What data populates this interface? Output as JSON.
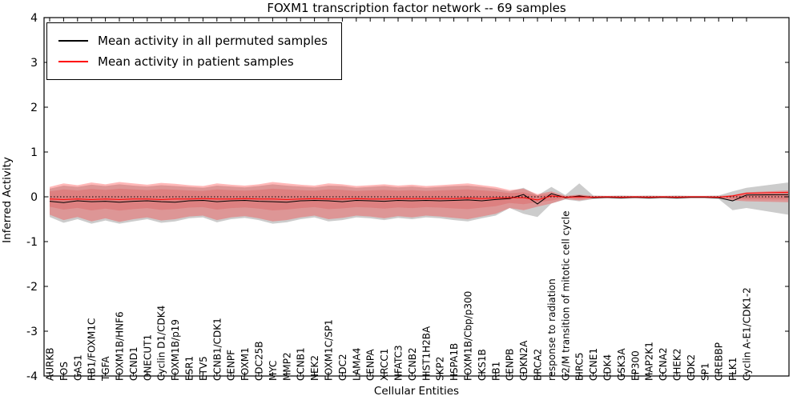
{
  "chart_data": {
    "type": "line",
    "title": "FOXM1 transcription factor network -- 69 samples",
    "xlabel": "Cellular Entities",
    "ylabel": "Inferred Activity",
    "ylim": [
      -4,
      4
    ],
    "yticks": [
      -4,
      -3,
      -2,
      -1,
      0,
      1,
      2,
      3,
      4
    ],
    "grid": false,
    "legend_position": "upper left",
    "zero_reference_line": "black dotted line at y=0",
    "categories": [
      "AURKB",
      "FOS",
      "GAS1",
      "RB1/FOXM1C",
      "TGFA",
      "FOXM1B/HNF6",
      "CCND1",
      "ONECUT1",
      "Cyclin D1/CDK4",
      "FOXM1B/p19",
      "ESR1",
      "ETV5",
      "CCNB1/CDK1",
      "CENPF",
      "FOXM1",
      "CDC25B",
      "MYC",
      "MMP2",
      "CCNB1",
      "NEK2",
      "FOXM1C/SP1",
      "CDC2",
      "LAMA4",
      "CENPA",
      "XRCC1",
      "NFATC3",
      "CCNB2",
      "HIST1H2BA",
      "SKP2",
      "HSPA1B",
      "FOXM1B/Cbp/p300",
      "CKS1B",
      "RB1",
      "CENPB",
      "CDKN2A",
      "BRCA2",
      "response to radiation",
      "G2/M transition of mitotic cell cycle",
      "BIRC5",
      "CCNE1",
      "CDK4",
      "GSK3A",
      "EP300",
      "MAP2K1",
      "CCNA2",
      "CHEK2",
      "CDK2",
      "SP1",
      "CREBBP",
      "PLK1",
      "Cyclin A-E1/CDK1-2"
    ],
    "series": [
      {
        "name": "Mean activity in all permuted samples",
        "color": "#000000",
        "band_color": "rgba(110,110,110,0.35)",
        "values": [
          -0.1,
          -0.13,
          -0.09,
          -0.11,
          -0.1,
          -0.12,
          -0.1,
          -0.09,
          -0.11,
          -0.12,
          -0.09,
          -0.08,
          -0.11,
          -0.09,
          -0.08,
          -0.1,
          -0.11,
          -0.12,
          -0.09,
          -0.08,
          -0.09,
          -0.11,
          -0.08,
          -0.09,
          -0.1,
          -0.08,
          -0.09,
          -0.08,
          -0.09,
          -0.08,
          -0.07,
          -0.09,
          -0.06,
          -0.04,
          0.05,
          -0.16,
          0.07,
          -0.02,
          0.02,
          -0.02,
          -0.01,
          -0.02,
          -0.01,
          -0.02,
          -0.01,
          -0.02,
          -0.01,
          -0.01,
          -0.02,
          -0.09,
          0.04
        ],
        "band_upper": [
          0.18,
          0.25,
          0.22,
          0.27,
          0.24,
          0.28,
          0.25,
          0.23,
          0.26,
          0.24,
          0.22,
          0.2,
          0.25,
          0.23,
          0.21,
          0.24,
          0.28,
          0.25,
          0.23,
          0.21,
          0.25,
          0.24,
          0.2,
          0.22,
          0.24,
          0.21,
          0.23,
          0.2,
          0.22,
          0.24,
          0.25,
          0.22,
          0.18,
          0.12,
          0.2,
          0.03,
          0.22,
          0.04,
          0.3,
          0.03,
          0.02,
          0.03,
          0.02,
          0.03,
          0.02,
          0.03,
          0.02,
          0.02,
          0.03,
          0.12,
          0.2
        ],
        "band_lower": [
          -0.45,
          -0.58,
          -0.5,
          -0.6,
          -0.53,
          -0.6,
          -0.55,
          -0.5,
          -0.58,
          -0.55,
          -0.48,
          -0.46,
          -0.57,
          -0.5,
          -0.47,
          -0.52,
          -0.6,
          -0.57,
          -0.5,
          -0.46,
          -0.55,
          -0.52,
          -0.46,
          -0.48,
          -0.52,
          -0.47,
          -0.5,
          -0.46,
          -0.48,
          -0.52,
          -0.55,
          -0.48,
          -0.42,
          -0.25,
          -0.38,
          -0.45,
          -0.15,
          -0.06,
          -0.1,
          -0.05,
          -0.04,
          -0.05,
          -0.04,
          -0.05,
          -0.04,
          -0.05,
          -0.04,
          -0.04,
          -0.05,
          -0.3,
          -0.25
        ]
      },
      {
        "name": "Mean activity in patient samples",
        "color": "#ff0000",
        "band_color": "rgba(255,40,40,0.33)",
        "values": [
          -0.05,
          -0.06,
          -0.05,
          -0.06,
          -0.05,
          -0.06,
          -0.05,
          -0.05,
          -0.06,
          -0.05,
          -0.05,
          -0.04,
          -0.05,
          -0.05,
          -0.04,
          -0.05,
          -0.05,
          -0.06,
          -0.05,
          -0.04,
          -0.05,
          -0.05,
          -0.04,
          -0.05,
          -0.05,
          -0.04,
          -0.04,
          -0.04,
          -0.04,
          -0.04,
          -0.03,
          -0.04,
          -0.03,
          -0.02,
          -0.02,
          -0.07,
          0.02,
          -0.01,
          0.0,
          -0.01,
          0.0,
          -0.01,
          0.0,
          -0.01,
          0.0,
          -0.01,
          0.0,
          0.0,
          -0.01,
          0.02,
          0.08
        ],
        "band_upper": [
          0.22,
          0.3,
          0.26,
          0.32,
          0.28,
          0.33,
          0.3,
          0.27,
          0.31,
          0.29,
          0.26,
          0.24,
          0.3,
          0.27,
          0.25,
          0.28,
          0.33,
          0.3,
          0.27,
          0.25,
          0.3,
          0.28,
          0.24,
          0.26,
          0.28,
          0.25,
          0.27,
          0.24,
          0.26,
          0.28,
          0.3,
          0.26,
          0.22,
          0.15,
          0.18,
          0.06,
          0.12,
          0.02,
          0.05,
          0.02,
          0.02,
          0.02,
          0.02,
          0.02,
          0.02,
          0.02,
          0.02,
          0.02,
          0.02,
          0.04,
          0.1
        ],
        "band_lower": [
          -0.4,
          -0.52,
          -0.45,
          -0.55,
          -0.48,
          -0.56,
          -0.5,
          -0.46,
          -0.53,
          -0.5,
          -0.44,
          -0.42,
          -0.52,
          -0.46,
          -0.43,
          -0.48,
          -0.55,
          -0.52,
          -0.46,
          -0.42,
          -0.5,
          -0.47,
          -0.42,
          -0.44,
          -0.48,
          -0.43,
          -0.46,
          -0.42,
          -0.44,
          -0.47,
          -0.5,
          -0.44,
          -0.38,
          -0.25,
          -0.3,
          -0.22,
          -0.15,
          -0.05,
          -0.08,
          -0.04,
          -0.03,
          -0.04,
          -0.03,
          -0.04,
          -0.03,
          -0.04,
          -0.03,
          -0.03,
          -0.04,
          -0.08,
          -0.1
        ]
      }
    ],
    "plot_right_edge_values": {
      "values": [
        0.05,
        0.1
      ],
      "band_upper": [
        0.32,
        0.14
      ],
      "band_lower": [
        -0.4,
        -0.12
      ]
    }
  }
}
